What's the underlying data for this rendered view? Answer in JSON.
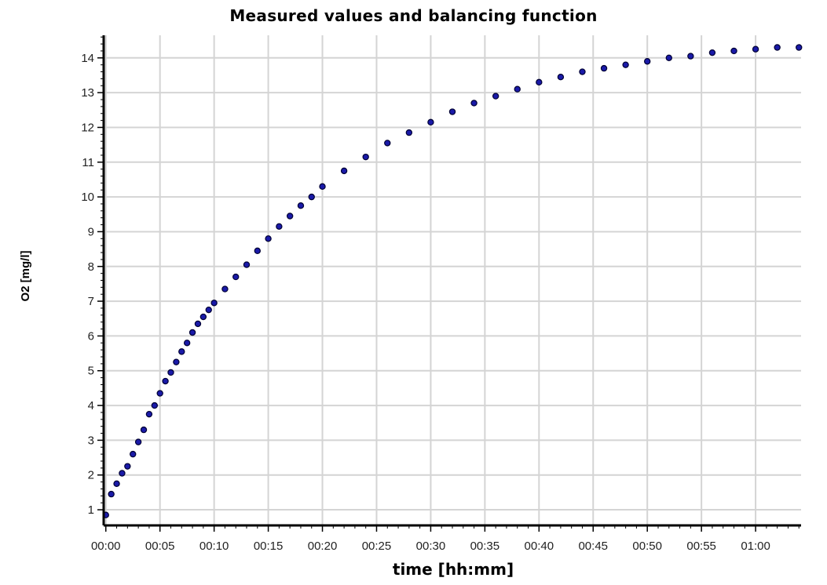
{
  "chart_data": {
    "type": "scatter",
    "title": "Measured values and balancing function",
    "xlabel": "time [hh:mm]",
    "ylabel": "O2 [mg/l]",
    "x_ticks": [
      "00:00",
      "00:05",
      "00:10",
      "00:15",
      "00:20",
      "00:25",
      "00:30",
      "00:35",
      "00:40",
      "00:45",
      "00:50",
      "00:55",
      "01:00"
    ],
    "y_ticks": [
      1,
      2,
      3,
      4,
      5,
      6,
      7,
      8,
      9,
      10,
      11,
      12,
      13,
      14
    ],
    "xlim_minutes": [
      -0.2,
      64.2
    ],
    "ylim": [
      0.55,
      14.65
    ],
    "grid": true,
    "marker_color": "#1a1aa8",
    "marker_edge": "#000033",
    "series": [
      {
        "x_minutes": [
          0.0,
          0.5,
          1.0,
          1.5,
          2.0,
          2.5,
          3.0,
          3.5,
          4.0,
          4.5,
          5.0,
          5.5,
          6.0,
          6.5,
          7.0,
          7.5,
          8.0,
          8.5,
          9.0,
          9.5,
          10.0,
          11.0,
          12.0,
          13.0,
          14.0,
          15.0,
          16.0,
          17.0,
          18.0,
          19.0,
          20.0,
          22.0,
          24.0,
          26.0,
          28.0,
          30.0,
          32.0,
          34.0,
          36.0,
          38.0,
          40.0,
          42.0,
          44.0,
          46.0,
          48.0,
          50.0,
          52.0,
          54.0,
          56.0,
          58.0,
          60.0,
          62.0,
          64.0
        ],
        "y": [
          0.85,
          1.45,
          1.75,
          2.05,
          2.25,
          2.6,
          2.95,
          3.3,
          3.75,
          4.0,
          4.35,
          4.7,
          4.95,
          5.25,
          5.55,
          5.8,
          6.1,
          6.35,
          6.55,
          6.75,
          6.95,
          7.35,
          7.7,
          8.05,
          8.45,
          8.8,
          9.15,
          9.45,
          9.75,
          10.0,
          10.3,
          10.75,
          11.15,
          11.55,
          11.85,
          12.15,
          12.45,
          12.7,
          12.9,
          13.1,
          13.3,
          13.45,
          13.6,
          13.7,
          13.8,
          13.9,
          14.0,
          14.05,
          14.15,
          14.2,
          14.25,
          14.3,
          14.3
        ]
      }
    ]
  }
}
